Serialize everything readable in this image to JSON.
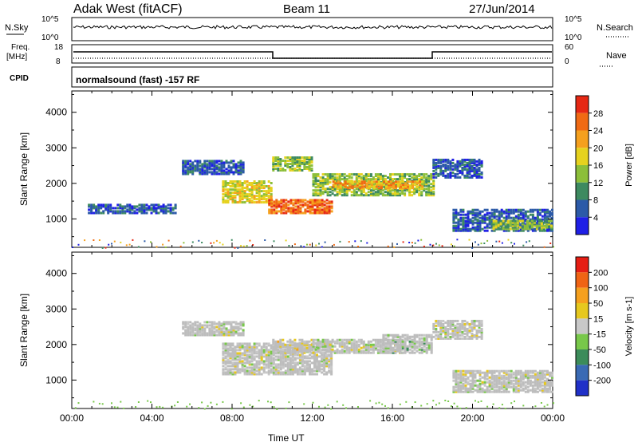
{
  "header": {
    "station": "Adak West (fitACF)",
    "beam": "Beam 11",
    "date": "27/Jun/2014"
  },
  "noise_panel": {
    "left_label": "N.Sky",
    "right_label": "N.Search",
    "left_ticks": [
      "10^5",
      "10^0"
    ],
    "right_ticks": [
      "10^5",
      "10^0"
    ]
  },
  "freq_panel": {
    "left_label_1": "Freq.",
    "left_label_2": "[MHz]",
    "right_label": "Nave",
    "left_ticks": [
      "18",
      "8"
    ],
    "right_ticks": [
      "60",
      "0"
    ]
  },
  "cpid_panel": {
    "label": "CPID",
    "text": "normalsound (fast) -157 RF"
  },
  "colors": {
    "frame": "#000000",
    "ground_scatter": "#bdbdbd",
    "background": "#ffffff"
  },
  "chart_data": [
    {
      "type": "heatmap",
      "title": "Power",
      "ylabel": "Slant Range [km]",
      "xlabel": "",
      "ylim": [
        200,
        4600
      ],
      "xlim": [
        "00:00",
        "24:00"
      ],
      "yticks": [
        "1000",
        "2000",
        "3000",
        "4000"
      ],
      "colorbar": {
        "label": "Power [dB]",
        "ticks": [
          "4",
          "8",
          "12",
          "16",
          "20",
          "24",
          "28"
        ],
        "colors": [
          "#1f1fe6",
          "#2c5aa8",
          "#3d8a60",
          "#8cbf3a",
          "#e6d21e",
          "#f5a01e",
          "#f06a14",
          "#e62814"
        ]
      },
      "regions": [
        {
          "t0": 0.8,
          "t1": 5.2,
          "r0": 1200,
          "r1": 1450,
          "level": 1
        },
        {
          "t0": 5.5,
          "t1": 8.5,
          "r0": 2300,
          "r1": 2700,
          "level": 1
        },
        {
          "t0": 7.5,
          "t1": 10.0,
          "r0": 1500,
          "r1": 2100,
          "level": 4
        },
        {
          "t0": 9.8,
          "t1": 13.0,
          "r0": 1200,
          "r1": 1600,
          "level": 6
        },
        {
          "t0": 10.0,
          "t1": 12.0,
          "r0": 2400,
          "r1": 2800,
          "level": 3
        },
        {
          "t0": 12.0,
          "t1": 18.0,
          "r0": 1700,
          "r1": 2300,
          "level": 3
        },
        {
          "t0": 13.0,
          "t1": 17.5,
          "r0": 1900,
          "r1": 2100,
          "level": 5
        },
        {
          "t0": 18.0,
          "t1": 20.5,
          "r0": 2200,
          "r1": 2700,
          "level": 1
        },
        {
          "t0": 19.0,
          "t1": 24.0,
          "r0": 700,
          "r1": 1300,
          "level": 1
        },
        {
          "t0": 21.0,
          "t1": 24.0,
          "r0": 750,
          "r1": 1000,
          "level": 3
        }
      ]
    },
    {
      "type": "heatmap",
      "title": "Velocity",
      "ylabel": "Slant Range [km]",
      "xlabel": "Time UT",
      "ylim": [
        200,
        4600
      ],
      "xlim": [
        "00:00",
        "24:00"
      ],
      "yticks": [
        "1000",
        "2000",
        "3000",
        "4000"
      ],
      "xticks": [
        "00:00",
        "04:00",
        "08:00",
        "12:00",
        "16:00",
        "20:00",
        "00:00"
      ],
      "colorbar": {
        "label": "Velocity [m s-1]",
        "ticks": [
          "200",
          "100",
          "50",
          "15",
          "-15",
          "-50",
          "-100",
          "-200"
        ],
        "colors": [
          "#2030c8",
          "#3a6ab4",
          "#3c8c5a",
          "#78c84a",
          "#c8c8c8",
          "#e6c81e",
          "#f5a01e",
          "#f06414",
          "#e61e14"
        ]
      },
      "regions": [
        {
          "t0": 5.5,
          "t1": 8.5,
          "r0": 2300,
          "r1": 2700,
          "level": 4
        },
        {
          "t0": 7.5,
          "t1": 13.0,
          "r0": 1200,
          "r1": 2100,
          "level": 4
        },
        {
          "t0": 10.0,
          "t1": 12.0,
          "r0": 1800,
          "r1": 2200,
          "level": 5
        },
        {
          "t0": 12.0,
          "t1": 16.5,
          "r0": 1800,
          "r1": 2200,
          "level": 4
        },
        {
          "t0": 15.5,
          "t1": 18.0,
          "r0": 1800,
          "r1": 2300,
          "level": 3
        },
        {
          "t0": 18.0,
          "t1": 20.5,
          "r0": 2200,
          "r1": 2700,
          "level": 4
        },
        {
          "t0": 19.0,
          "t1": 24.0,
          "r0": 700,
          "r1": 1300,
          "level": 4
        }
      ]
    }
  ]
}
